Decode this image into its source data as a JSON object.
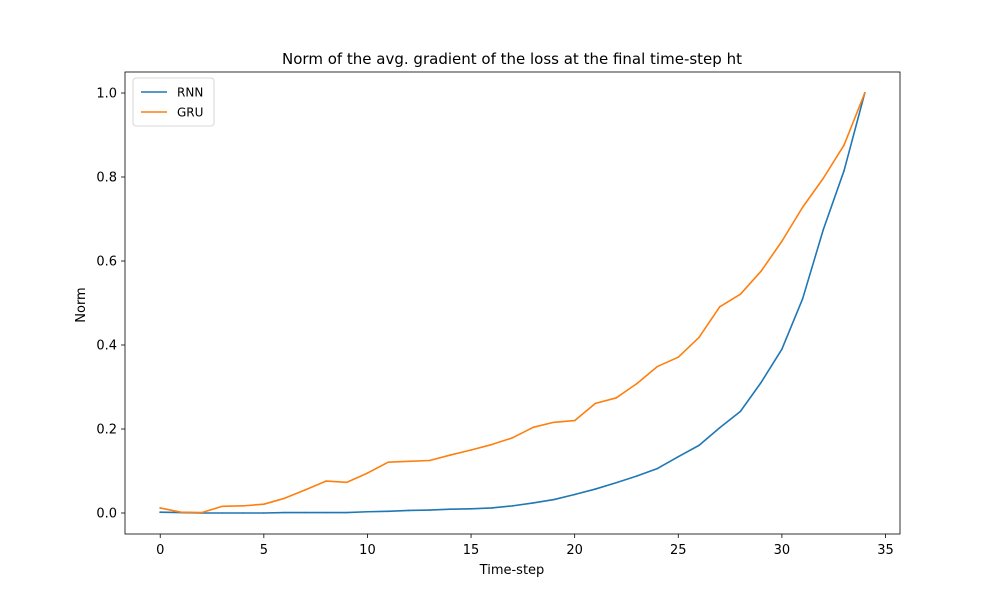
{
  "chart_data": {
    "type": "line",
    "title": "Norm of the avg. gradient of the loss at the final time-step ht",
    "xlabel": "Time-step",
    "ylabel": "Norm",
    "xlim": [
      -1.7,
      35.7
    ],
    "ylim": [
      -0.05,
      1.05
    ],
    "xticks": [
      0,
      5,
      10,
      15,
      20,
      25,
      30,
      35
    ],
    "xtick_labels": [
      "0",
      "5",
      "10",
      "15",
      "20",
      "25",
      "30",
      "35"
    ],
    "yticks": [
      0.0,
      0.2,
      0.4,
      0.6,
      0.8,
      1.0
    ],
    "ytick_labels": [
      "0.0",
      "0.2",
      "0.4",
      "0.6",
      "0.8",
      "1.0"
    ],
    "grid": false,
    "legend_position": "top-left",
    "x": [
      0,
      1,
      2,
      3,
      4,
      5,
      6,
      7,
      8,
      9,
      10,
      11,
      12,
      13,
      14,
      15,
      16,
      17,
      18,
      19,
      20,
      21,
      22,
      23,
      24,
      25,
      26,
      27,
      28,
      29,
      30,
      31,
      32,
      33,
      34
    ],
    "series": [
      {
        "name": "RNN",
        "color": "#1f77b4",
        "values": [
          0.002,
          0.001,
          0.0,
          0.0,
          0.0,
          0.0,
          0.001,
          0.001,
          0.001,
          0.001,
          0.003,
          0.004,
          0.006,
          0.007,
          0.009,
          0.01,
          0.012,
          0.017,
          0.024,
          0.032,
          0.044,
          0.057,
          0.072,
          0.088,
          0.106,
          0.134,
          0.161,
          0.203,
          0.242,
          0.311,
          0.39,
          0.51,
          0.675,
          0.815,
          1.0
        ]
      },
      {
        "name": "GRU",
        "color": "#ff7f0e",
        "values": [
          0.012,
          0.002,
          0.001,
          0.016,
          0.017,
          0.021,
          0.035,
          0.055,
          0.076,
          0.073,
          0.095,
          0.121,
          0.123,
          0.125,
          0.138,
          0.15,
          0.163,
          0.179,
          0.204,
          0.216,
          0.22,
          0.261,
          0.274,
          0.308,
          0.349,
          0.371,
          0.418,
          0.491,
          0.521,
          0.576,
          0.647,
          0.728,
          0.797,
          0.876,
          1.0
        ]
      }
    ]
  }
}
